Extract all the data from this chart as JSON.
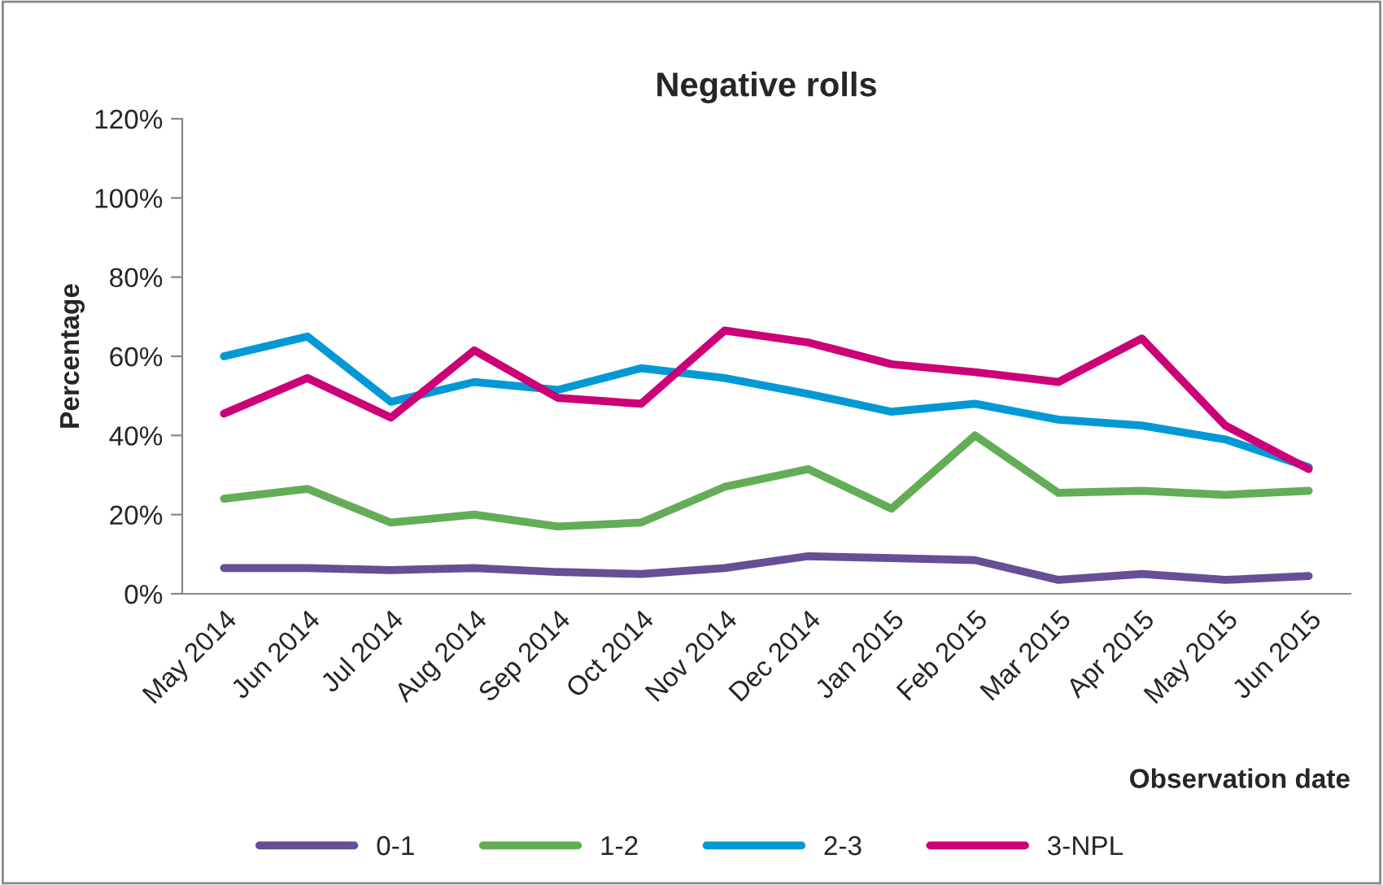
{
  "chart_data": {
    "type": "line",
    "title": "Negative rolls",
    "xlabel": "Observation date",
    "ylabel": "Percentage",
    "categories": [
      "May 2014",
      "Jun 2014",
      "Jul 2014",
      "Aug 2014",
      "Sep 2014",
      "Oct 2014",
      "Nov 2014",
      "Dec 2014",
      "Jan 2015",
      "Feb 2015",
      "Mar 2015",
      "Apr 2015",
      "May 2015",
      "Jun 2015"
    ],
    "series": [
      {
        "name": "0-1",
        "color": "#664f96",
        "values": [
          6.5,
          6.5,
          6,
          6.5,
          5.5,
          5,
          6.5,
          9.5,
          9,
          8.5,
          3.5,
          5,
          3.5,
          4.5
        ]
      },
      {
        "name": "1-2",
        "color": "#63ad57",
        "values": [
          24,
          26.5,
          18,
          20,
          17,
          18,
          27,
          31.5,
          21.5,
          40,
          25.5,
          26,
          25,
          26
        ]
      },
      {
        "name": "2-3",
        "color": "#0099d6",
        "values": [
          60,
          65,
          48.5,
          53.5,
          51.5,
          57,
          54.5,
          50.5,
          46,
          48,
          44,
          42.5,
          39,
          32
        ]
      },
      {
        "name": "3-NPL",
        "color": "#cc0077",
        "values": [
          45.5,
          54.5,
          44.5,
          61.5,
          49.5,
          48,
          66.5,
          63.5,
          58,
          56,
          53.5,
          64.5,
          42.5,
          31.5
        ]
      }
    ],
    "ylim": [
      0,
      120
    ],
    "yticks": [
      {
        "value": 0,
        "label": "0%"
      },
      {
        "value": 20,
        "label": "20%"
      },
      {
        "value": 40,
        "label": "40%"
      },
      {
        "value": 60,
        "label": "60%"
      },
      {
        "value": 80,
        "label": "80%"
      },
      {
        "value": 100,
        "label": "100%"
      },
      {
        "value": 120,
        "label": "120%"
      }
    ],
    "grid": false,
    "legend": "bottom",
    "marker": "none",
    "line_style": "solid"
  }
}
